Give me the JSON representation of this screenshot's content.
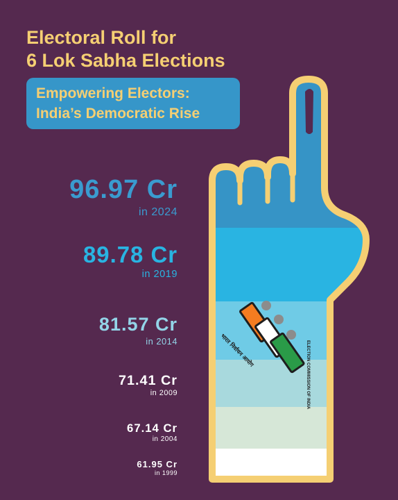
{
  "header": {
    "title_line1": "Electoral Roll for",
    "title_line2": "6 Lok Sabha Elections",
    "subtitle_line1": "Empowering Electors:",
    "subtitle_line2": "India’s Democratic Rise"
  },
  "logo": {
    "hindi_text": "भारत निर्वाचन आयोग",
    "english_text": "ELECTION COMMISSION OF INDIA"
  },
  "colors": {
    "background": "#55294f",
    "title": "#f5cf73",
    "subtitle_box": "#3696c9",
    "outline": "#f5cf73"
  },
  "chart_data": {
    "type": "bar",
    "title": "Electoral Roll for 6 Lok Sabha Elections",
    "subtitle": "Empowering Electors: India’s Democratic Rise",
    "unit": "Cr",
    "categories": [
      "2024",
      "2019",
      "2014",
      "2009",
      "2004",
      "1999"
    ],
    "values": [
      96.97,
      89.78,
      81.57,
      71.41,
      67.14,
      61.95
    ],
    "labels": [
      "96.97 Cr",
      "89.78 Cr",
      "81.57 Cr",
      "71.41 Cr",
      "67.14 Cr",
      "61.95 Cr"
    ],
    "year_labels": [
      "in 2024",
      "in 2019",
      "in 2014",
      "in 2009",
      "in 2004",
      "in 1999"
    ],
    "band_colors": [
      "#3694c6",
      "#29b4e2",
      "#6fcbe6",
      "#a8d9dd",
      "#d6e7d7",
      "#ffffff"
    ],
    "text_colors": [
      "#3a9bd0",
      "#29b4e2",
      "#93d4e8",
      "#ffffff",
      "#ffffff",
      "#ffffff"
    ]
  }
}
